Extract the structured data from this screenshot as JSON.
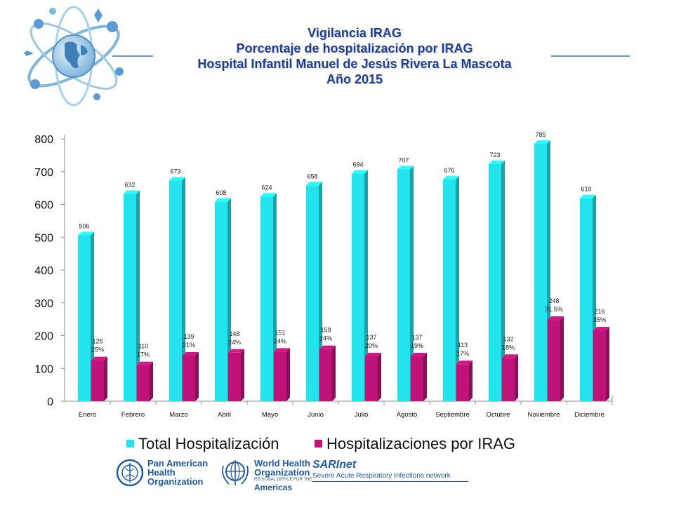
{
  "slide": {
    "title_lines": [
      "Vigilancia IRAG",
      "Porcentaje  de hospitalización por IRAG",
      "Hospital Infantil Manuel de Jesús Rivera La Mascota",
      "Año 2015"
    ]
  },
  "colors": {
    "title": "#1f3f94",
    "total_bar": "#22e3ee",
    "irag_bar": "#c0137a",
    "accent_line": "#5b9bd5",
    "paho_blue": "#1f5aa6"
  },
  "chart_data": {
    "type": "bar",
    "categories": [
      "Enero",
      "Febrero",
      "Marzo",
      "Abril",
      "Mayo",
      "Junio",
      "Julio",
      "Agosto",
      "Septiembre",
      "Octubre",
      "Noviembre",
      "Diciembre"
    ],
    "series": [
      {
        "name": "Total Hospitalización",
        "color": "#22e3ee",
        "values": [
          506,
          632,
          673,
          608,
          624,
          658,
          694,
          707,
          676,
          723,
          785,
          619
        ]
      },
      {
        "name": "Hospitalizaciones por IRAG",
        "color": "#c0137a",
        "values": [
          125,
          110,
          139,
          148,
          151,
          159,
          137,
          137,
          113,
          132,
          248,
          216
        ],
        "percent_labels": [
          "25%",
          "17%",
          "21%",
          "24%",
          "24%",
          "24%",
          "20%",
          "19%",
          "17%",
          "18%",
          "31.5%",
          "35%"
        ]
      }
    ],
    "ylim": [
      0,
      800
    ],
    "yticks": [
      0,
      100,
      200,
      300,
      400,
      500,
      600,
      700,
      800
    ],
    "grid": false,
    "legend_position": "bottom"
  },
  "legend": {
    "total_label": "Total Hospitalización",
    "irag_label": "Hospitalizaciones por IRAG"
  },
  "footer": {
    "paho_lines": [
      "Pan American",
      "Health",
      "Organization"
    ],
    "who_lines": [
      "World Health",
      "Organization"
    ],
    "who_region": "REGIONAL OFFICE FOR THE",
    "who_americas": "Americas",
    "sarinet_name": "SARInet",
    "sarinet_desc": "Severe Acute Respiratory Infections network"
  }
}
